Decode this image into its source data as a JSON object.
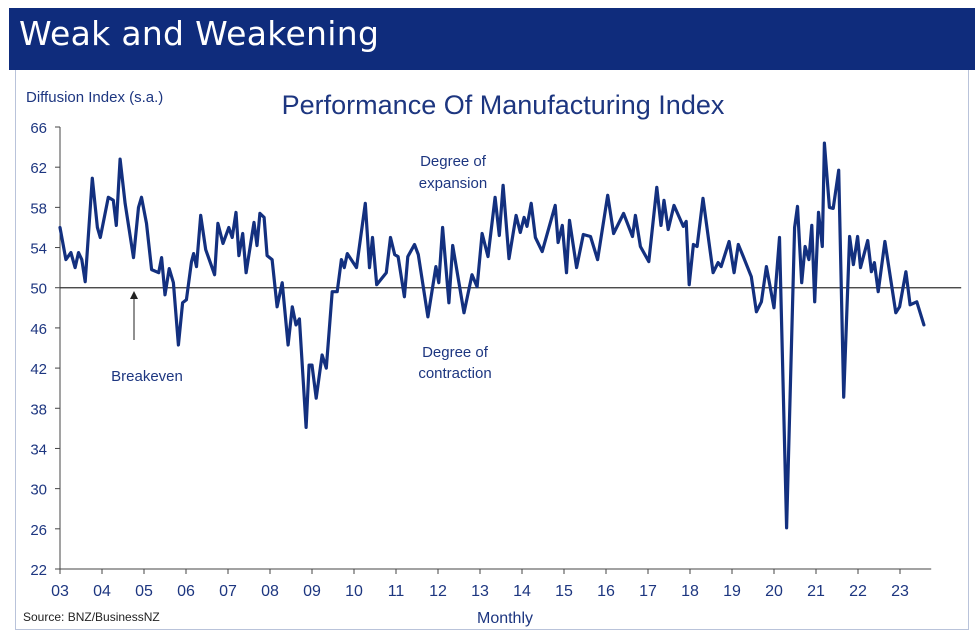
{
  "header": {
    "title": "Weak and Weakening"
  },
  "colors": {
    "header_bg": "#0f2c7c",
    "line": "#13307f",
    "text": "#1d3680"
  },
  "chart_data": {
    "type": "line",
    "title": "Performance Of Manufacturing Index",
    "ylabel": "Diffusion Index (s.a.)",
    "xlabel": "Monthly",
    "source": "Source: BNZ/BusinessNZ",
    "ylim": [
      22,
      66
    ],
    "xlim": [
      2003,
      2023.6
    ],
    "yticks": [
      22,
      26,
      30,
      34,
      38,
      42,
      46,
      50,
      54,
      58,
      62,
      66
    ],
    "xtick_values": [
      2003,
      2004,
      2005,
      2006,
      2007,
      2008,
      2009,
      2010,
      2011,
      2012,
      2013,
      2014,
      2015,
      2016,
      2017,
      2018,
      2019,
      2020,
      2021,
      2022,
      2023
    ],
    "xtick_labels": [
      "03",
      "04",
      "05",
      "06",
      "07",
      "08",
      "09",
      "10",
      "11",
      "12",
      "13",
      "14",
      "15",
      "16",
      "17",
      "18",
      "19",
      "20",
      "21",
      "22",
      "23"
    ],
    "reference_line": 50,
    "grid": false,
    "annotations": [
      {
        "text": "Breakeven",
        "x": 2004.8,
        "y": 50
      },
      {
        "text_lines": [
          "Degree of",
          "expansion"
        ]
      },
      {
        "text_lines": [
          "Degree of",
          "contraction"
        ]
      }
    ],
    "annotation_text": {
      "breakeven": "Breakeven",
      "expansion_1": "Degree of",
      "expansion_2": "expansion",
      "contraction_1": "Degree of",
      "contraction_2": "contraction"
    },
    "x": [
      2003.0,
      2003.14,
      2003.26,
      2003.36,
      2003.44,
      2003.52,
      2003.6,
      2003.77,
      2003.89,
      2003.96,
      2004.15,
      2004.27,
      2004.34,
      2004.43,
      2004.55,
      2004.75,
      2004.87,
      2004.94,
      2005.06,
      2005.18,
      2005.35,
      2005.42,
      2005.5,
      2005.6,
      2005.7,
      2005.82,
      2005.92,
      2006.01,
      2006.13,
      2006.18,
      2006.25,
      2006.35,
      2006.47,
      2006.68,
      2006.76,
      2006.88,
      2007.02,
      2007.1,
      2007.19,
      2007.26,
      2007.35,
      2007.43,
      2007.62,
      2007.69,
      2007.76,
      2007.86,
      2007.93,
      2008.05,
      2008.17,
      2008.29,
      2008.43,
      2008.53,
      2008.62,
      2008.7,
      2008.86,
      2008.93,
      2009.0,
      2009.1,
      2009.24,
      2009.34,
      2009.48,
      2009.6,
      2009.7,
      2009.77,
      2009.84,
      2010.06,
      2010.27,
      2010.37,
      2010.44,
      2010.54,
      2010.77,
      2010.87,
      2010.97,
      2011.05,
      2011.2,
      2011.28,
      2011.44,
      2011.53,
      2011.76,
      2011.95,
      2012.02,
      2012.11,
      2012.26,
      2012.35,
      2012.62,
      2012.81,
      2012.93,
      2013.05,
      2013.19,
      2013.36,
      2013.46,
      2013.55,
      2013.69,
      2013.86,
      2013.96,
      2014.05,
      2014.12,
      2014.22,
      2014.32,
      2014.48,
      2014.79,
      2014.86,
      2014.96,
      2015.06,
      2015.13,
      2015.3,
      2015.46,
      2015.63,
      2015.8,
      2016.04,
      2016.18,
      2016.42,
      2016.63,
      2016.7,
      2016.82,
      2017.02,
      2017.21,
      2017.31,
      2017.38,
      2017.48,
      2017.62,
      2017.84,
      2017.91,
      2017.98,
      2018.08,
      2018.17,
      2018.31,
      2018.55,
      2018.67,
      2018.74,
      2018.93,
      2019.05,
      2019.15,
      2019.27,
      2019.46,
      2019.58,
      2019.7,
      2019.82,
      2020.0,
      2020.13,
      2020.3,
      2020.49,
      2020.56,
      2020.66,
      2020.74,
      2020.83,
      2020.9,
      2020.97,
      2021.06,
      2021.15,
      2021.2,
      2021.32,
      2021.41,
      2021.54,
      2021.66,
      2021.8,
      2021.89,
      2021.99,
      2022.06,
      2022.23,
      2022.32,
      2022.39,
      2022.48,
      2022.64,
      2022.9,
      2022.99,
      2023.14,
      2023.24,
      2023.4,
      2023.57
    ],
    "values": [
      56.0,
      52.8,
      53.5,
      52.0,
      53.5,
      52.8,
      50.6,
      60.9,
      56.0,
      55.0,
      59.0,
      58.7,
      56.2,
      62.8,
      58.4,
      53.0,
      58.0,
      59.0,
      56.4,
      51.8,
      51.5,
      53.0,
      49.3,
      51.9,
      50.5,
      44.3,
      48.5,
      48.8,
      52.6,
      53.4,
      52.1,
      57.2,
      53.8,
      51.3,
      56.4,
      54.4,
      56.0,
      55.0,
      57.5,
      53.2,
      55.4,
      51.5,
      56.5,
      54.2,
      57.4,
      57.0,
      53.2,
      52.8,
      48.1,
      50.5,
      44.3,
      48.1,
      46.3,
      46.9,
      36.1,
      42.3,
      42.3,
      39.0,
      43.3,
      42.0,
      49.6,
      49.6,
      52.8,
      52.0,
      53.4,
      52.0,
      58.4,
      52.0,
      55.0,
      50.3,
      51.5,
      55.0,
      53.3,
      53.1,
      49.1,
      53.1,
      54.3,
      53.3,
      47.1,
      52.1,
      50.5,
      56.0,
      48.5,
      54.2,
      47.5,
      51.3,
      50.1,
      55.4,
      53.1,
      59.0,
      55.2,
      60.2,
      52.9,
      57.2,
      55.5,
      57.0,
      56.1,
      58.4,
      55.0,
      53.6,
      58.2,
      54.5,
      56.2,
      51.5,
      56.7,
      52.0,
      55.3,
      55.1,
      52.8,
      59.2,
      55.4,
      57.4,
      55.1,
      57.2,
      54.1,
      52.6,
      60.0,
      56.2,
      58.7,
      55.8,
      58.2,
      56.1,
      56.6,
      50.3,
      54.3,
      54.1,
      58.9,
      51.5,
      52.5,
      52.1,
      54.6,
      51.5,
      54.3,
      53.1,
      51.1,
      47.6,
      48.6,
      52.1,
      48.0,
      55.0,
      26.1,
      56.0,
      58.1,
      50.5,
      54.1,
      52.8,
      56.2,
      48.6,
      57.5,
      54.1,
      64.4,
      58.0,
      57.9,
      61.7,
      39.1,
      55.1,
      52.3,
      55.1,
      52.0,
      54.7,
      51.6,
      52.5,
      49.6,
      54.6,
      47.5,
      48.1,
      51.6,
      48.3,
      48.6,
      46.3
    ]
  }
}
